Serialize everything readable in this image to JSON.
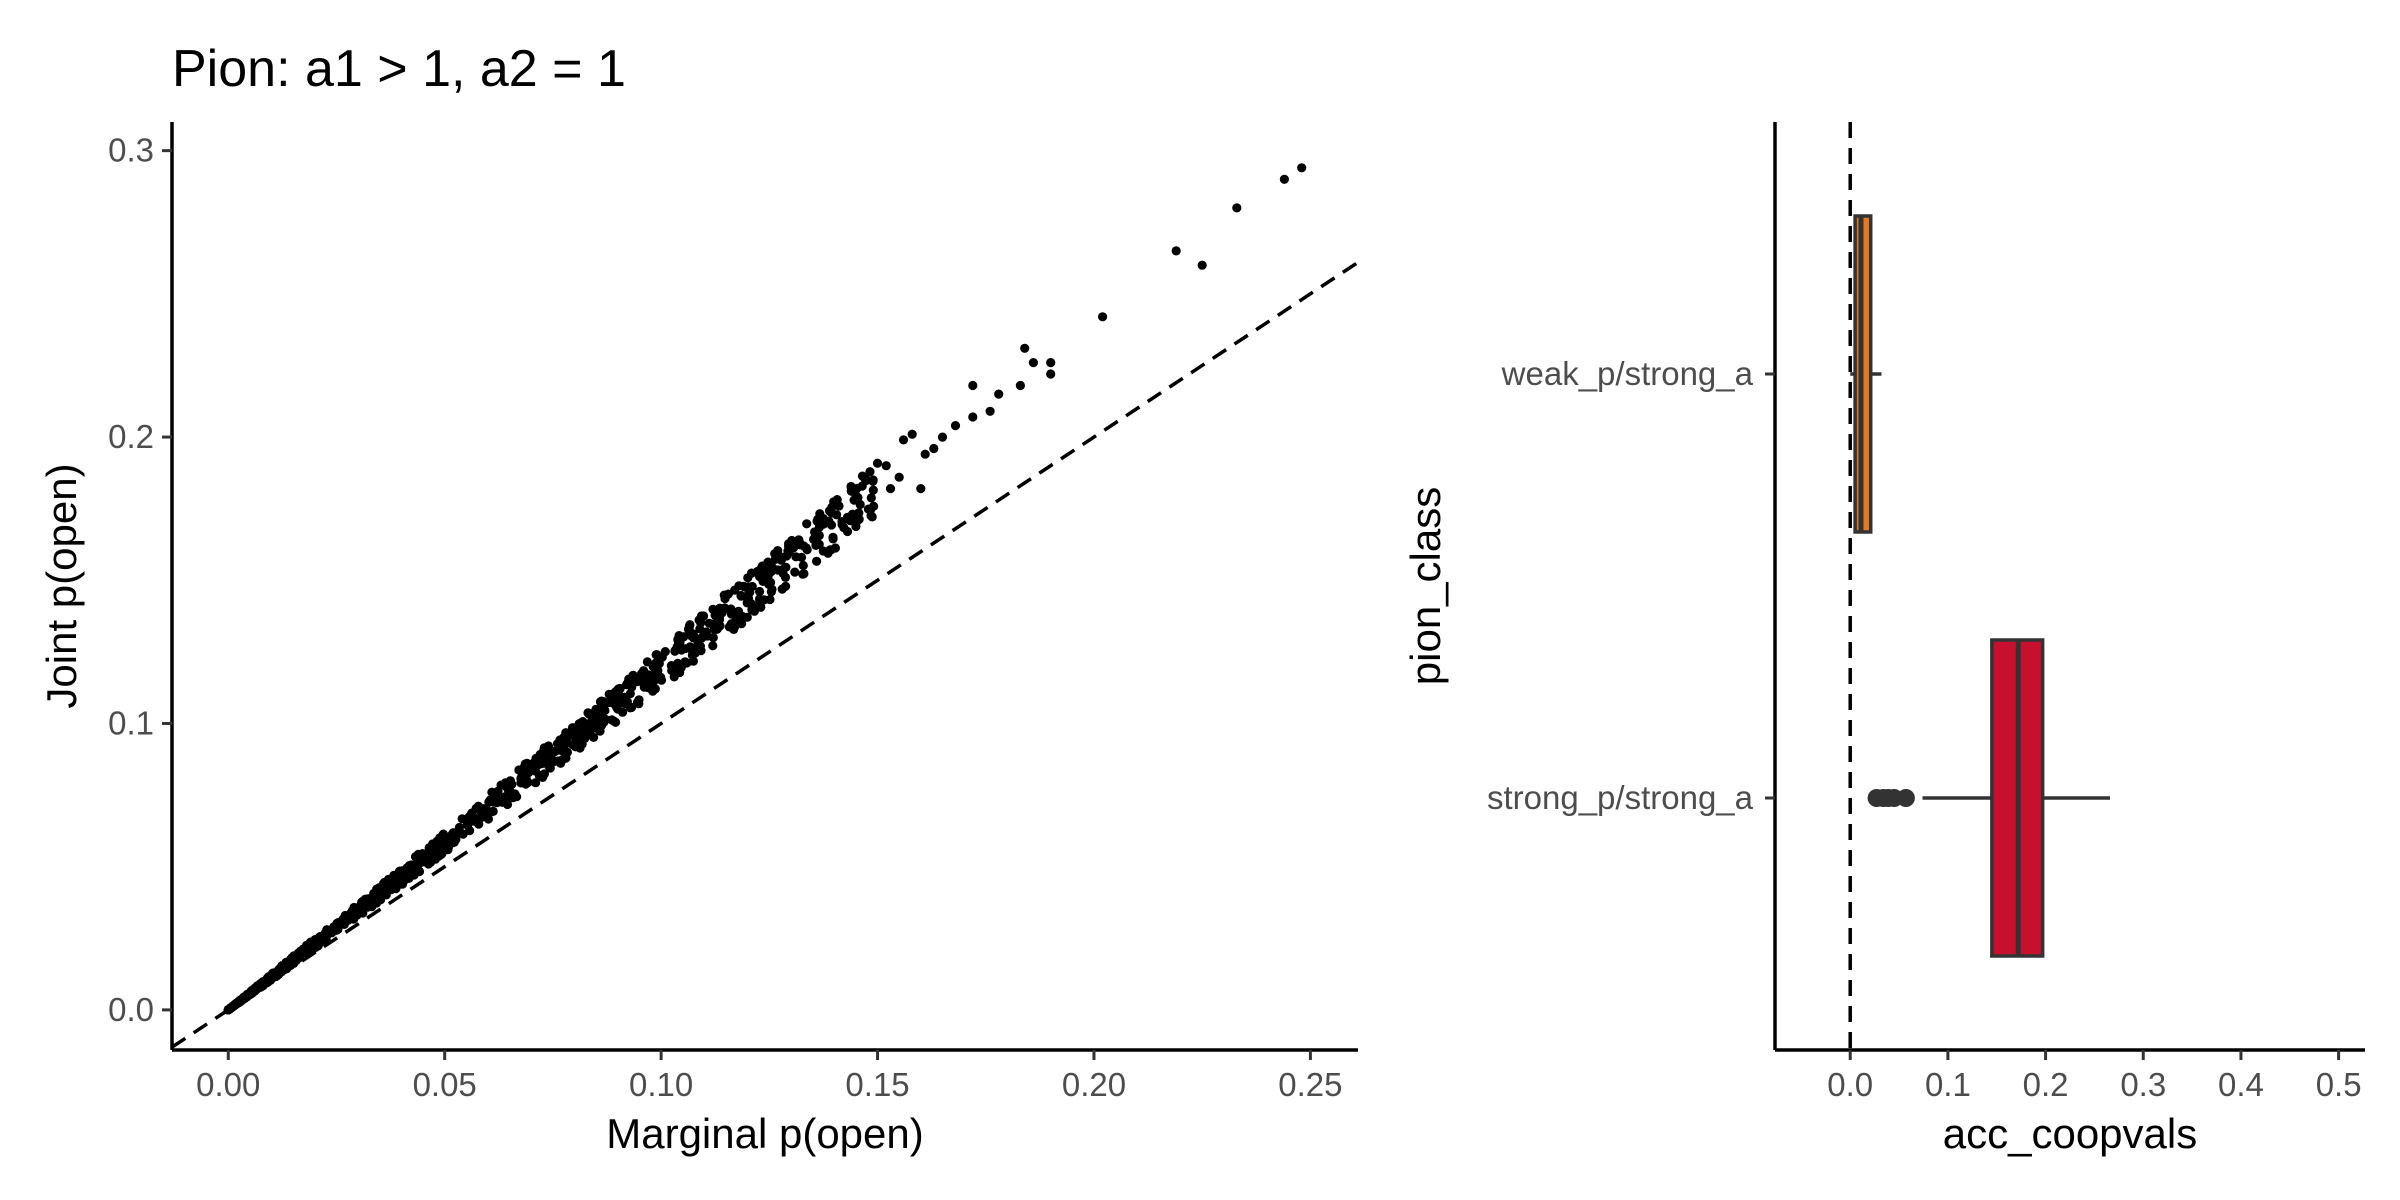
{
  "title": "Pion: a1 > 1, a2 = 1",
  "chart_data": [
    {
      "type": "scatter",
      "xlabel": "Marginal p(open)",
      "ylabel": "Joint p(open)",
      "xlim": [
        -0.013,
        0.261
      ],
      "ylim": [
        -0.014,
        0.31
      ],
      "x_ticks": [
        "0.00",
        "0.05",
        "0.10",
        "0.15",
        "0.20",
        "0.25"
      ],
      "y_ticks": [
        "0.0",
        "0.1",
        "0.2",
        "0.3"
      ],
      "reference_line": {
        "slope": 1,
        "intercept": 0,
        "style": "dashed"
      },
      "grid": false,
      "point_color": "#000000",
      "notable_points": [
        {
          "x": 0.248,
          "y": 0.294
        },
        {
          "x": 0.244,
          "y": 0.29
        },
        {
          "x": 0.233,
          "y": 0.28
        },
        {
          "x": 0.225,
          "y": 0.26
        },
        {
          "x": 0.219,
          "y": 0.265
        },
        {
          "x": 0.202,
          "y": 0.242
        },
        {
          "x": 0.19,
          "y": 0.226
        },
        {
          "x": 0.19,
          "y": 0.222
        },
        {
          "x": 0.186,
          "y": 0.226
        },
        {
          "x": 0.184,
          "y": 0.231
        },
        {
          "x": 0.183,
          "y": 0.218
        },
        {
          "x": 0.178,
          "y": 0.215
        },
        {
          "x": 0.176,
          "y": 0.209
        },
        {
          "x": 0.172,
          "y": 0.218
        },
        {
          "x": 0.172,
          "y": 0.207
        },
        {
          "x": 0.168,
          "y": 0.204
        },
        {
          "x": 0.165,
          "y": 0.2
        },
        {
          "x": 0.163,
          "y": 0.196
        },
        {
          "x": 0.161,
          "y": 0.194
        },
        {
          "x": 0.16,
          "y": 0.182
        },
        {
          "x": 0.158,
          "y": 0.201
        },
        {
          "x": 0.156,
          "y": 0.199
        },
        {
          "x": 0.155,
          "y": 0.186
        },
        {
          "x": 0.153,
          "y": 0.182
        },
        {
          "x": 0.152,
          "y": 0.19
        },
        {
          "x": 0.149,
          "y": 0.185
        }
      ],
      "band": [
        {
          "x": 0.0,
          "lo": 0.0,
          "hi": 0.0
        },
        {
          "x": 0.01,
          "lo": 0.0105,
          "hi": 0.0125
        },
        {
          "x": 0.02,
          "lo": 0.0215,
          "hi": 0.025
        },
        {
          "x": 0.03,
          "lo": 0.0325,
          "hi": 0.037
        },
        {
          "x": 0.04,
          "lo": 0.0435,
          "hi": 0.0495
        },
        {
          "x": 0.05,
          "lo": 0.055,
          "hi": 0.062
        },
        {
          "x": 0.06,
          "lo": 0.0665,
          "hi": 0.075
        },
        {
          "x": 0.07,
          "lo": 0.078,
          "hi": 0.088
        },
        {
          "x": 0.08,
          "lo": 0.0895,
          "hi": 0.1
        },
        {
          "x": 0.09,
          "lo": 0.101,
          "hi": 0.113
        },
        {
          "x": 0.1,
          "lo": 0.1125,
          "hi": 0.126
        },
        {
          "x": 0.11,
          "lo": 0.1245,
          "hi": 0.139
        },
        {
          "x": 0.12,
          "lo": 0.1365,
          "hi": 0.152
        },
        {
          "x": 0.13,
          "lo": 0.1485,
          "hi": 0.165
        },
        {
          "x": 0.14,
          "lo": 0.1605,
          "hi": 0.178
        },
        {
          "x": 0.15,
          "lo": 0.173,
          "hi": 0.191
        }
      ],
      "n_points": 1000
    },
    {
      "type": "boxplot",
      "orientation": "horizontal",
      "xlabel": "acc_coopvals",
      "ylabel": "pion_class",
      "xlim": [
        -0.077,
        0.527
      ],
      "x_ticks": [
        "0.0",
        "0.1",
        "0.2",
        "0.3",
        "0.4",
        "0.5"
      ],
      "reference_line": {
        "x": 0,
        "style": "dashed"
      },
      "grid": false,
      "categories": [
        "weak_p/strong_a",
        "strong_p/strong_a"
      ],
      "boxes": [
        {
          "category": "weak_p/strong_a",
          "min": 0.0,
          "q1": 0.005,
          "median": 0.011,
          "q3": 0.021,
          "max": 0.032,
          "outliers": [],
          "color": "#E87722"
        },
        {
          "category": "strong_p/strong_a",
          "min": 0.074,
          "q1": 0.145,
          "median": 0.172,
          "q3": 0.197,
          "max": 0.266,
          "outliers": [
            0.027,
            0.034,
            0.039,
            0.045,
            0.057
          ],
          "color": "#C8102E"
        }
      ]
    }
  ]
}
